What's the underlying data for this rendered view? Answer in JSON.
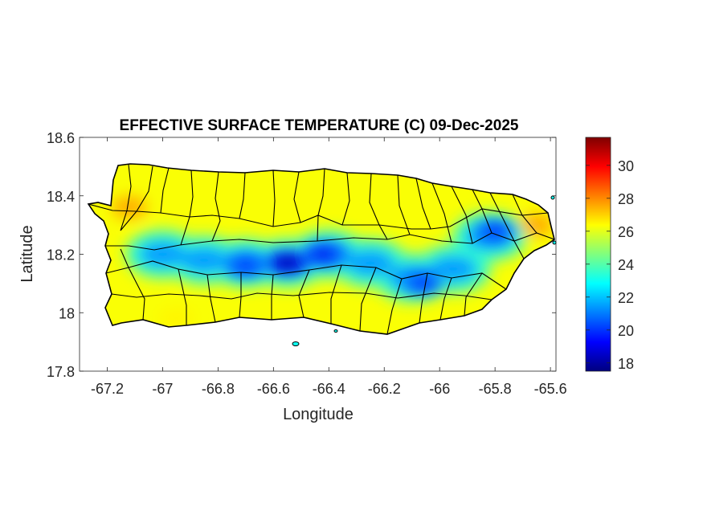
{
  "figure": {
    "title": "EFFECTIVE SURFACE TEMPERATURE (C) 09-Dec-2025",
    "xlabel": "Longitude",
    "ylabel": "Latitude"
  },
  "chart_data": {
    "type": "heatmap",
    "title": "EFFECTIVE SURFACE TEMPERATURE (C) 09-Dec-2025",
    "xlabel": "Longitude",
    "ylabel": "Latitude",
    "xlim": [
      -67.3,
      -65.58
    ],
    "ylim": [
      17.8,
      18.6
    ],
    "x_ticks": [
      -67.2,
      -67,
      -66.8,
      -66.6,
      -66.4,
      -66.2,
      -66,
      -65.8,
      -65.6
    ],
    "x_tick_labels": [
      "-67.2",
      "-67",
      "-66.8",
      "-66.6",
      "-66.4",
      "-66.2",
      "-66",
      "-65.8",
      "-65.6"
    ],
    "y_ticks": [
      17.8,
      18,
      18.2,
      18.4,
      18.6
    ],
    "y_tick_labels": [
      "17.8",
      "18",
      "18.2",
      "18.4",
      "18.6"
    ],
    "grid": false,
    "colormap": "jet",
    "colorbar": {
      "range": [
        17.5,
        31.7
      ],
      "ticks": [
        18,
        20,
        22,
        24,
        26,
        28,
        30
      ],
      "tick_labels": [
        "18",
        "20",
        "22",
        "24",
        "26",
        "28",
        "30"
      ],
      "colors": [
        "#00007f",
        "#0000ff",
        "#007fff",
        "#00ffff",
        "#7fff7f",
        "#ffff00",
        "#ff7f00",
        "#ff0000",
        "#7f0000"
      ]
    },
    "surface_summary": {
      "coastal_lowlands_approx": 26.5,
      "foothills_approx": 23.5,
      "central_mountains_min_approx": 18
    },
    "cold_cores": [
      {
        "lon": -66.55,
        "lat": 18.17,
        "value": 17.8
      },
      {
        "lon": -66.42,
        "lat": 18.2,
        "value": 19
      },
      {
        "lon": -66.7,
        "lat": 18.16,
        "value": 19.5
      },
      {
        "lon": -66.06,
        "lat": 18.1,
        "value": 19.5
      },
      {
        "lon": -65.8,
        "lat": 18.28,
        "value": 19.5
      }
    ],
    "warm_spots": [
      {
        "lon": -65.65,
        "lat": 18.3,
        "value": 27.5
      },
      {
        "lon": -67.12,
        "lat": 18.36,
        "value": 27.5
      },
      {
        "lon": -66.95,
        "lat": 17.98,
        "value": 26.5
      }
    ]
  },
  "colors": {
    "axes_frame": "#262626",
    "text": "#262626",
    "boundary": "#000000"
  }
}
